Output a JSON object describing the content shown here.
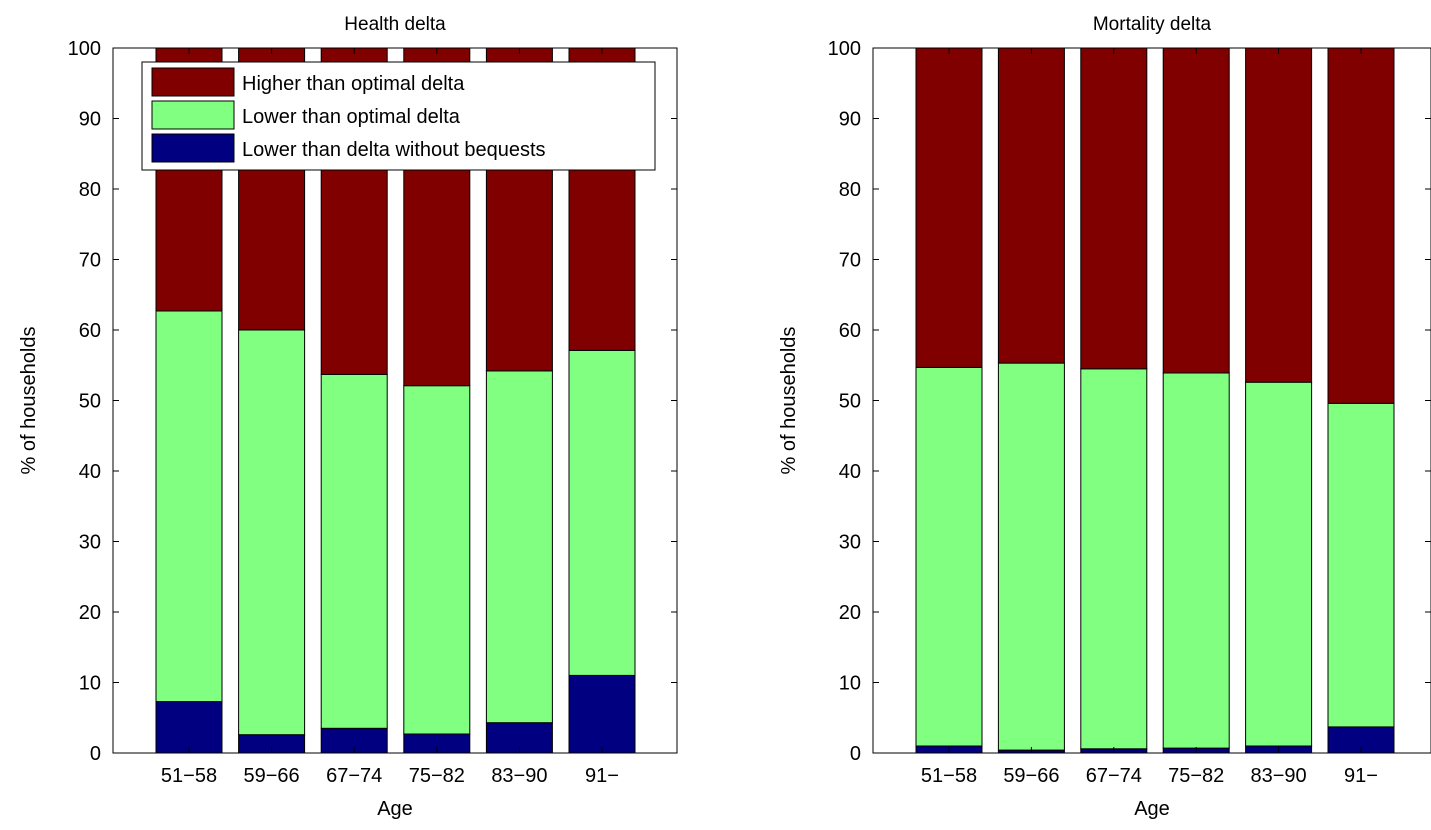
{
  "chart_data": [
    {
      "type": "bar",
      "stacked": true,
      "title": "Health delta",
      "xlabel": "Age",
      "ylabel": "% of households",
      "ylim": [
        0,
        100
      ],
      "yticks": [
        0,
        10,
        20,
        30,
        40,
        50,
        60,
        70,
        80,
        90,
        100
      ],
      "categories": [
        "51−58",
        "59−66",
        "67−74",
        "75−82",
        "83−90",
        "91−"
      ],
      "grid": false,
      "legend_position": "top-left",
      "series": [
        {
          "name": "Lower than delta without bequests",
          "color": "#000080",
          "values": [
            7.3,
            2.6,
            3.5,
            2.7,
            4.3,
            11.0
          ]
        },
        {
          "name": "Lower than optimal delta",
          "color": "#80ff80",
          "values": [
            55.4,
            57.4,
            50.2,
            49.4,
            49.9,
            46.1
          ]
        },
        {
          "name": "Higher than optimal delta",
          "color": "#800000",
          "values": [
            37.3,
            40.0,
            46.3,
            47.9,
            45.8,
            42.9
          ]
        }
      ]
    },
    {
      "type": "bar",
      "stacked": true,
      "title": "Mortality delta",
      "xlabel": "Age",
      "ylabel": "% of households",
      "ylim": [
        0,
        100
      ],
      "yticks": [
        0,
        10,
        20,
        30,
        40,
        50,
        60,
        70,
        80,
        90,
        100
      ],
      "categories": [
        "51−58",
        "59−66",
        "67−74",
        "75−82",
        "83−90",
        "91−"
      ],
      "grid": false,
      "series": [
        {
          "color": "#000080",
          "values": [
            1.0,
            0.4,
            0.6,
            0.7,
            1.0,
            3.7
          ]
        },
        {
          "color": "#80ff80",
          "values": [
            53.7,
            54.9,
            53.9,
            53.2,
            51.6,
            45.9
          ]
        },
        {
          "color": "#800000",
          "values": [
            45.3,
            44.7,
            45.5,
            46.1,
            47.4,
            50.4
          ]
        }
      ]
    }
  ]
}
